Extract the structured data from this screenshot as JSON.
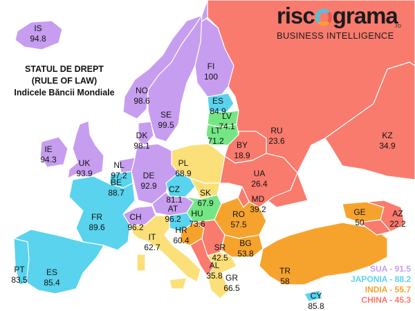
{
  "title": [
    "STATUL DE DREPT",
    "(RULE OF LAW)",
    "Indicele Băncii Mondiale"
  ],
  "brand": {
    "word_a": "risc",
    "word_b": "grama",
    "suffix": ".ro",
    "tagline": "BUSINESS INTELLIGENCE"
  },
  "colors": {
    "purple": "#c79df0",
    "cyan": "#59d3ee",
    "green": "#74e784",
    "yellow": "#fbe07a",
    "orange": "#f6a32e",
    "red": "#f97b6e",
    "sea": "#ffffff",
    "border": "#ffffff"
  },
  "countries": [
    {
      "code": "IS",
      "value": "94.8",
      "color": "purple"
    },
    {
      "code": "FI",
      "value": "100",
      "color": "purple"
    },
    {
      "code": "NO",
      "value": "98.6",
      "color": "purple"
    },
    {
      "code": "SE",
      "value": "99.5",
      "color": "purple"
    },
    {
      "code": "ES",
      "value": "84.9",
      "color": "cyan"
    },
    {
      "code": "LV",
      "value": "74.1",
      "color": "green"
    },
    {
      "code": "LT",
      "value": "71.2",
      "color": "green"
    },
    {
      "code": "DK",
      "value": "98.1",
      "color": "purple"
    },
    {
      "code": "RU",
      "value": "23.6",
      "color": "red"
    },
    {
      "code": "KZ",
      "value": "34.9",
      "color": "red"
    },
    {
      "code": "BY",
      "value": "18.9",
      "color": "red"
    },
    {
      "code": "IE",
      "value": "94.3",
      "color": "purple"
    },
    {
      "code": "UK",
      "value": "93.9",
      "color": "purple"
    },
    {
      "code": "NL",
      "value": "97.2",
      "color": "purple"
    },
    {
      "code": "BE",
      "value": "88.7",
      "color": "cyan"
    },
    {
      "code": "DE",
      "value": "92.9",
      "color": "purple"
    },
    {
      "code": "PL",
      "value": "68.9",
      "color": "yellow"
    },
    {
      "code": "UA",
      "value": "26.4",
      "color": "red"
    },
    {
      "code": "CZ",
      "value": "81.1",
      "color": "cyan"
    },
    {
      "code": "SK",
      "value": "67.9",
      "color": "yellow"
    },
    {
      "code": "MD",
      "value": "39.2",
      "color": "red"
    },
    {
      "code": "FR",
      "value": "89.6",
      "color": "cyan"
    },
    {
      "code": "CH",
      "value": "96.2",
      "color": "purple"
    },
    {
      "code": "AT",
      "value": "96.2",
      "color": "purple"
    },
    {
      "code": "HU",
      "value": "73.6",
      "color": "green"
    },
    {
      "code": "RO",
      "value": "57.5",
      "color": "orange"
    },
    {
      "code": "GE",
      "value": "50",
      "color": "orange"
    },
    {
      "code": "AZ",
      "value": "22.2",
      "color": "red"
    },
    {
      "code": "HR",
      "value": "60.4",
      "color": "orange"
    },
    {
      "code": "IT",
      "value": "62.7",
      "color": "yellow"
    },
    {
      "code": "SR",
      "value": "42.5",
      "color": "red"
    },
    {
      "code": "BG",
      "value": "53.8",
      "color": "orange"
    },
    {
      "code": "PT",
      "value": "83.5",
      "color": "cyan"
    },
    {
      "code": "ES",
      "value": "85.4",
      "color": "cyan"
    },
    {
      "code": "AL",
      "value": "35.8",
      "color": "red"
    },
    {
      "code": "GR",
      "value": "66.5",
      "color": "yellow"
    },
    {
      "code": "TR",
      "value": "58",
      "color": "orange"
    },
    {
      "code": "CY",
      "value": "85.8",
      "color": "cyan"
    }
  ],
  "legend": [
    {
      "text": "SUA - 91.5",
      "color": "purple"
    },
    {
      "text": "JAPONIA - 88.2",
      "color": "cyan"
    },
    {
      "text": "INDIA - 55.7",
      "color": "orange"
    },
    {
      "text": "CHINA - 45.3",
      "color": "red"
    }
  ]
}
